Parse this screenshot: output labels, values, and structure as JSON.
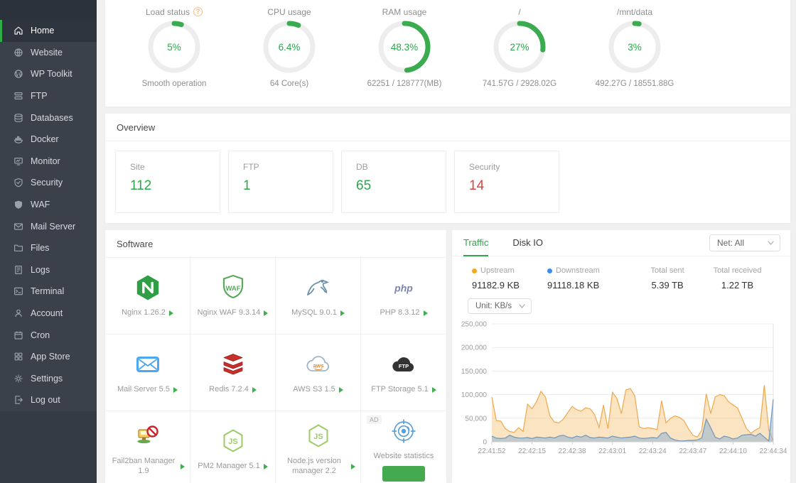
{
  "sidebar": {
    "items": [
      {
        "label": "Home",
        "icon": "home",
        "active": true
      },
      {
        "label": "Website",
        "icon": "globe",
        "active": false
      },
      {
        "label": "WP Toolkit",
        "icon": "wordpress",
        "active": false
      },
      {
        "label": "FTP",
        "icon": "server",
        "active": false
      },
      {
        "label": "Databases",
        "icon": "database",
        "active": false
      },
      {
        "label": "Docker",
        "icon": "docker",
        "active": false
      },
      {
        "label": "Monitor",
        "icon": "monitor",
        "active": false
      },
      {
        "label": "Security",
        "icon": "shield-check",
        "active": false
      },
      {
        "label": "WAF",
        "icon": "shield",
        "active": false
      },
      {
        "label": "Mail Server",
        "icon": "mail",
        "active": false
      },
      {
        "label": "Files",
        "icon": "folder",
        "active": false
      },
      {
        "label": "Logs",
        "icon": "log",
        "active": false
      },
      {
        "label": "Terminal",
        "icon": "terminal",
        "active": false
      },
      {
        "label": "Account",
        "icon": "user",
        "active": false
      },
      {
        "label": "Cron",
        "icon": "calendar",
        "active": false
      },
      {
        "label": "App Store",
        "icon": "grid",
        "active": false
      },
      {
        "label": "Settings",
        "icon": "gear",
        "active": false
      },
      {
        "label": "Log out",
        "icon": "logout",
        "active": false
      }
    ]
  },
  "gauges": [
    {
      "title": "Load status",
      "help": true,
      "percent": 5,
      "value": "5%",
      "subtitle": "Smooth operation"
    },
    {
      "title": "CPU usage",
      "help": false,
      "percent": 6.4,
      "value": "6.4%",
      "subtitle": "64 Core(s)"
    },
    {
      "title": "RAM usage",
      "help": false,
      "percent": 48.3,
      "value": "48.3%",
      "subtitle": "62251 / 128777(MB)"
    },
    {
      "title": "/",
      "help": false,
      "percent": 27,
      "value": "27%",
      "subtitle": "741.57G / 2928.02G"
    },
    {
      "title": "/mnt/data",
      "help": false,
      "percent": 3,
      "value": "3%",
      "subtitle": "492.27G / 18551.88G"
    }
  ],
  "overview": {
    "title": "Overview",
    "cards": [
      {
        "label": "Site",
        "value": "112",
        "color": "green"
      },
      {
        "label": "FTP",
        "value": "1",
        "color": "green"
      },
      {
        "label": "DB",
        "value": "65",
        "color": "green"
      },
      {
        "label": "Security",
        "value": "14",
        "color": "red"
      }
    ]
  },
  "software": {
    "title": "Software",
    "items": [
      {
        "name": "Nginx 1.26.2",
        "icon": "nginx",
        "ad": false,
        "button": false
      },
      {
        "name": "Nginx WAF 9.3.14",
        "icon": "waf",
        "ad": false,
        "button": false
      },
      {
        "name": "MySQL 9.0.1",
        "icon": "mysql",
        "ad": false,
        "button": false
      },
      {
        "name": "PHP 8.3.12",
        "icon": "php",
        "ad": false,
        "button": false
      },
      {
        "name": "Mail Server 5.5",
        "icon": "mailapp",
        "ad": false,
        "button": false
      },
      {
        "name": "Redis 7.2.4",
        "icon": "redis",
        "ad": false,
        "button": false
      },
      {
        "name": "AWS S3 1.5",
        "icon": "aws",
        "ad": false,
        "button": false
      },
      {
        "name": "FTP Storage 5.1",
        "icon": "ftpcloud",
        "ad": false,
        "button": false
      },
      {
        "name": "Fail2ban Manager 1.9",
        "icon": "fail2ban",
        "ad": false,
        "button": false
      },
      {
        "name": "PM2 Manager 5.1",
        "icon": "nodejs",
        "ad": false,
        "button": false
      },
      {
        "name": "Node.js version manager 2.2",
        "icon": "nodejs",
        "ad": false,
        "button": false
      },
      {
        "name": "Website statistics",
        "icon": "stats",
        "ad": true,
        "button": true
      }
    ],
    "ad_label": "AD"
  },
  "traffic": {
    "tabs": [
      "Traffic",
      "Disk IO"
    ],
    "active_tab": "Traffic",
    "net_select": "Net: All",
    "unit_select": "Unit: KB/s",
    "stats": [
      {
        "label": "Upstream",
        "value": "91182.9 KB",
        "dot": "#f5a623"
      },
      {
        "label": "Downstream",
        "value": "91118.18 KB",
        "dot": "#3d8af2"
      },
      {
        "label": "Total sent",
        "value": "5.39 TB",
        "dot": ""
      },
      {
        "label": "Total received",
        "value": "1.22 TB",
        "dot": ""
      }
    ]
  },
  "chart_data": {
    "type": "area",
    "title": "Network traffic",
    "ylabel": "KB/s",
    "ylim": [
      0,
      250000
    ],
    "grid": true,
    "legend_position": "top",
    "y_ticks": [
      "0",
      "50,000",
      "100,000",
      "150,000",
      "200,000",
      "250,000"
    ],
    "x_labels": [
      "22:41:52",
      "22:42:15",
      "22:42:38",
      "22:43:01",
      "22:43:24",
      "22:43:47",
      "22:44:10",
      "22:44:34"
    ],
    "series": [
      {
        "name": "Upstream",
        "color": "#eca94e",
        "fill": "rgba(246,196,120,0.45)",
        "values": [
          95000,
          45000,
          44000,
          28000,
          22000,
          20000,
          30000,
          22000,
          80000,
          70000,
          85000,
          107000,
          95000,
          55000,
          42000,
          40000,
          48000,
          62000,
          75000,
          68000,
          65000,
          72000,
          70000,
          58000,
          30000,
          78000,
          28000,
          105000,
          92000,
          60000,
          110000,
          113000,
          98000,
          32000,
          28000,
          30000,
          28000,
          26000,
          87000,
          40000,
          50000,
          55000,
          52000,
          45000,
          28000,
          14000,
          10000,
          25000,
          102000,
          60000,
          95000,
          100000,
          98000,
          85000,
          78000,
          72000,
          50000,
          28000,
          18000,
          25000,
          30000,
          120000,
          25000,
          3000
        ]
      },
      {
        "name": "Downstream",
        "color": "#7096b8",
        "fill": "rgba(156,184,209,0.6)",
        "values": [
          12000,
          8000,
          7000,
          8000,
          14000,
          10000,
          8000,
          8000,
          9000,
          7000,
          10000,
          9000,
          8000,
          10000,
          8000,
          12000,
          14000,
          10000,
          8000,
          12000,
          10000,
          14000,
          9000,
          8000,
          10000,
          9000,
          8000,
          12000,
          10000,
          8000,
          9000,
          10000,
          12000,
          8000,
          7000,
          8000,
          9000,
          8000,
          18000,
          20000,
          8000,
          4000,
          2000,
          2000,
          3000,
          3000,
          4000,
          8000,
          48000,
          30000,
          10000,
          6000,
          12000,
          10000,
          6000,
          8000,
          14000,
          15000,
          16000,
          12000,
          18000,
          10000,
          2000,
          90000
        ]
      }
    ]
  }
}
